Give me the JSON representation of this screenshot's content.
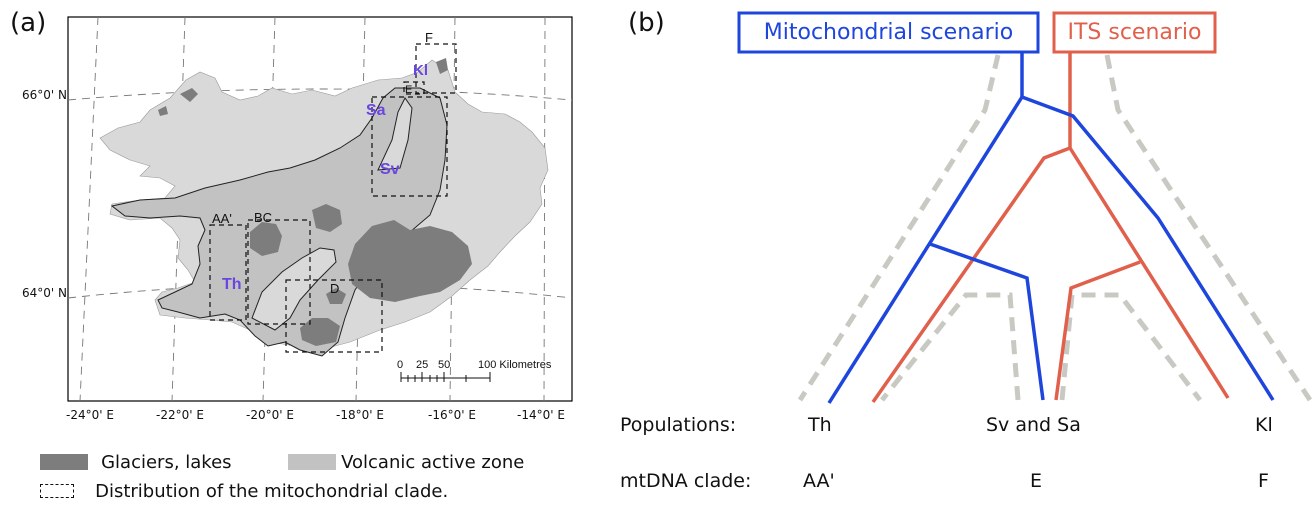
{
  "panel_a": {
    "label": "(a)",
    "lat_labels": [
      "66°0' N",
      "64°0' N"
    ],
    "lon_labels": [
      "-24°0' E",
      "-22°0' E",
      "-20°0' E",
      "-18°0' E",
      "-16°0' E",
      "-14°0' E"
    ],
    "regions": [
      "F",
      "Kl",
      "E",
      "Sa",
      "Sv",
      "AA'",
      "BC",
      "Th",
      "D"
    ],
    "scalebar": {
      "ticks": [
        "0",
        "25",
        "50"
      ],
      "end": "100 Kilometres"
    },
    "legend": {
      "glaciers": "Glaciers,  lakes",
      "volcanic": "Volcanic active zone",
      "distribution": "Distribution of the mitochondrial clade."
    },
    "colors": {
      "land": "#d9d9d9",
      "volcanic": "#c2c2c2",
      "glacier": "#7d7d7d",
      "region_text": "#6b45e0"
    }
  },
  "panel_b": {
    "label": "(b)",
    "scenario_mito": "Mitochondrial scenario",
    "scenario_its": "ITS scenario",
    "populations_label": "Populations:",
    "populations": [
      "Th",
      "Sv and Sa",
      "Kl"
    ],
    "clade_label": "mtDNA clade:",
    "clades": [
      "AA'",
      "E",
      "F"
    ],
    "colors": {
      "mito": "#1e46dc",
      "its": "#e0604c",
      "shadow": "#c9c9c3"
    }
  }
}
